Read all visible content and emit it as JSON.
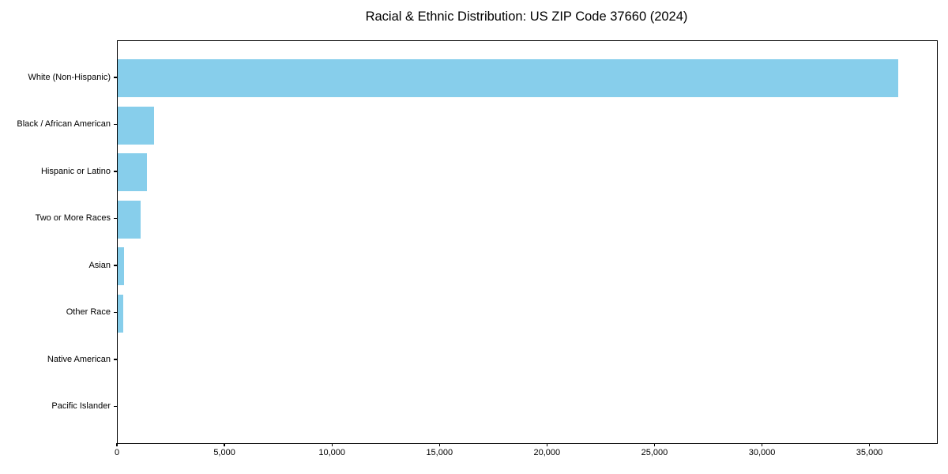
{
  "chart_data": {
    "type": "bar",
    "orientation": "horizontal",
    "title": "Racial & Ethnic Distribution: US ZIP Code 37660 (2024)",
    "categories": [
      "White (Non-Hispanic)",
      "Black / African American",
      "Hispanic or Latino",
      "Two or More Races",
      "Asian",
      "Other Race",
      "Native American",
      "Pacific Islander"
    ],
    "values": [
      36300,
      1700,
      1350,
      1050,
      300,
      250,
      0,
      0
    ],
    "xlabel": "",
    "ylabel": "",
    "xlim": [
      0,
      38100
    ],
    "xticks": [
      0,
      5000,
      10000,
      15000,
      20000,
      25000,
      30000,
      35000
    ],
    "xtick_labels": [
      "0",
      "5,000",
      "10,000",
      "15,000",
      "20,000",
      "25,000",
      "30,000",
      "35,000"
    ],
    "bar_color": "#87CEEB",
    "background_color": "#ffffff",
    "axis_color": "#000000",
    "grid": false,
    "legend": null
  }
}
